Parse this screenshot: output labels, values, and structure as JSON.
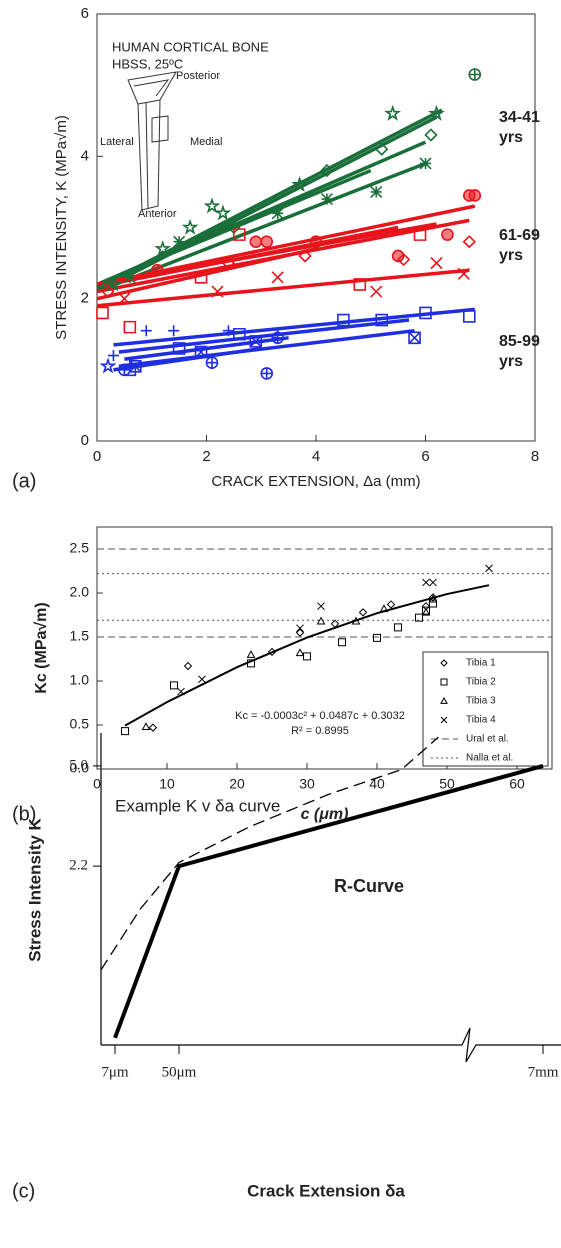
{
  "chart_data": [
    {
      "type": "scatter",
      "panel": "(a)",
      "xlabel": "CRACK EXTENSION, Δa (mm)",
      "ylabel": "STRESS INTENSITY, K (MPa√m)",
      "xlim": [
        0,
        8
      ],
      "xticks": [
        0,
        2,
        4,
        6,
        8
      ],
      "ylim": [
        0,
        6
      ],
      "yticks": [
        0,
        2,
        4,
        6
      ],
      "inset": {
        "title": [
          "HUMAN CORTICAL BONE",
          "HBSS, 25ºC"
        ],
        "labels": [
          "Posterior",
          "Lateral",
          "Medial",
          "Anterior"
        ]
      },
      "group_labels": [
        [
          "34-41",
          "yrs"
        ],
        [
          "61-69",
          "yrs"
        ],
        [
          "85-99",
          "yrs"
        ]
      ],
      "series": [
        {
          "color": "#1a6e3a",
          "marker": "star",
          "x": [
            0.3,
            1.2,
            1.7,
            2.1,
            2.3,
            3.7,
            5.4,
            6.2
          ],
          "values": [
            2.2,
            2.7,
            3.0,
            3.3,
            3.2,
            3.6,
            4.6,
            4.6
          ]
        },
        {
          "color": "#1a6e3a",
          "marker": "asterisk",
          "x": [
            0.6,
            1.5,
            3.3,
            4.2,
            5.1,
            6.0
          ],
          "values": [
            2.3,
            2.8,
            3.2,
            3.4,
            3.5,
            3.9
          ]
        },
        {
          "color": "#1a6e3a",
          "marker": "diamond",
          "x": [
            0.2,
            2.5,
            4.2,
            5.2,
            6.1
          ],
          "values": [
            2.2,
            3.0,
            3.8,
            4.1,
            4.3
          ]
        },
        {
          "color": "#1a6e3a",
          "marker": "circle-plus",
          "x": [
            6.9
          ],
          "values": [
            5.15
          ]
        },
        {
          "color": "#e8141c",
          "marker": "circle-half",
          "x": [
            1.1,
            2.9,
            3.1,
            4.0,
            5.5,
            6.4,
            6.8,
            6.9
          ],
          "values": [
            2.4,
            2.8,
            2.8,
            2.8,
            2.6,
            2.9,
            3.45,
            3.45
          ]
        },
        {
          "color": "#e8141c",
          "marker": "square",
          "x": [
            0.1,
            0.6,
            1.9,
            2.6,
            4.8,
            5.9
          ],
          "values": [
            1.8,
            1.6,
            2.3,
            2.9,
            2.2,
            2.9
          ]
        },
        {
          "color": "#e8141c",
          "marker": "x",
          "x": [
            0.5,
            2.2,
            3.3,
            5.1,
            6.2,
            6.7
          ],
          "values": [
            2.0,
            2.1,
            2.3,
            2.1,
            2.5,
            2.35
          ]
        },
        {
          "color": "#e8141c",
          "marker": "diamond",
          "x": [
            0.2,
            2.4,
            3.8,
            5.6,
            6.8
          ],
          "values": [
            2.1,
            2.5,
            2.6,
            2.55,
            2.8
          ]
        },
        {
          "color": "#1f2ee0",
          "marker": "plus",
          "x": [
            0.3,
            0.9,
            1.4,
            2.4,
            3.3
          ],
          "values": [
            1.2,
            1.55,
            1.55,
            1.55,
            1.5
          ]
        },
        {
          "color": "#1f2ee0",
          "marker": "square",
          "x": [
            0.6,
            1.5,
            2.6,
            4.5,
            5.2,
            6.0,
            6.8
          ],
          "values": [
            1.0,
            1.3,
            1.5,
            1.7,
            1.7,
            1.8,
            1.75
          ]
        },
        {
          "color": "#1f2ee0",
          "marker": "circle-plus",
          "x": [
            0.5,
            2.1,
            3.3,
            3.1
          ],
          "values": [
            1.0,
            1.1,
            1.45,
            0.95
          ]
        },
        {
          "color": "#1f2ee0",
          "marker": "crossed-square",
          "x": [
            0.7,
            1.9,
            2.9,
            5.8
          ],
          "values": [
            1.05,
            1.25,
            1.4,
            1.45
          ]
        },
        {
          "color": "#1f2ee0",
          "marker": "star",
          "x": [
            0.2
          ],
          "values": [
            1.05
          ]
        }
      ],
      "fits": [
        {
          "color": "#1a6e3a",
          "x": [
            0,
            6.3
          ],
          "values": [
            2.15,
            4.65
          ]
        },
        {
          "color": "#1a6e3a",
          "x": [
            0,
            6.2
          ],
          "values": [
            2.1,
            4.55
          ]
        },
        {
          "color": "#1a6e3a",
          "x": [
            0,
            6
          ],
          "values": [
            2.2,
            4.2
          ]
        },
        {
          "color": "#1a6e3a",
          "x": [
            0,
            6
          ],
          "values": [
            2.1,
            3.9
          ]
        },
        {
          "color": "#1a6e3a",
          "x": [
            0,
            5
          ],
          "values": [
            2.2,
            3.8
          ]
        },
        {
          "color": "#e8141c",
          "x": [
            0,
            6.9
          ],
          "values": [
            2.2,
            3.3
          ]
        },
        {
          "color": "#e8141c",
          "x": [
            0,
            6.8
          ],
          "values": [
            2.1,
            3.1
          ]
        },
        {
          "color": "#e8141c",
          "x": [
            0,
            6.2
          ],
          "values": [
            2.2,
            3.05
          ]
        },
        {
          "color": "#e8141c",
          "x": [
            0.2,
            5.5
          ],
          "values": [
            2.2,
            3.0
          ]
        },
        {
          "color": "#e8141c",
          "x": [
            0,
            6.8
          ],
          "values": [
            1.9,
            2.4
          ]
        },
        {
          "color": "#e8141c",
          "x": [
            0,
            4
          ],
          "values": [
            2.0,
            2.7
          ]
        },
        {
          "color": "#1f2ee0",
          "x": [
            0.3,
            6.9
          ],
          "values": [
            1.35,
            1.85
          ]
        },
        {
          "color": "#1f2ee0",
          "x": [
            0.4,
            5.8
          ],
          "values": [
            1.05,
            1.55
          ]
        },
        {
          "color": "#1f2ee0",
          "x": [
            0.4,
            5.7
          ],
          "values": [
            1.25,
            1.7
          ]
        },
        {
          "color": "#1f2ee0",
          "x": [
            0.5,
            3.5
          ],
          "values": [
            1.15,
            1.45
          ]
        },
        {
          "color": "#1f2ee0",
          "x": [
            0.3,
            3
          ],
          "values": [
            1.0,
            1.3
          ]
        }
      ]
    },
    {
      "type": "scatter",
      "panel": "(b)",
      "xlabel": "c (μm)",
      "ylabel": "Kc (MPa√m)",
      "xlim": [
        0,
        65
      ],
      "xticks": [
        0,
        10,
        20,
        30,
        40,
        50,
        60
      ],
      "ylim": [
        0,
        2.75
      ],
      "yticks": [
        {
          "value": 0,
          "label": "0.0"
        },
        {
          "value": 0.5,
          "label": "0.5"
        },
        {
          "value": 1,
          "label": "1.0"
        },
        {
          "value": 1.5,
          "label": "1.5"
        },
        {
          "value": 2,
          "label": "2.0"
        },
        {
          "value": 2.5,
          "label": "2.5"
        }
      ],
      "legend": "lower right",
      "series": [
        {
          "name": "Tibia 1",
          "color": "#000000",
          "marker": "diamond",
          "x": [
            8,
            13,
            25,
            29,
            34,
            38,
            42,
            47,
            48
          ],
          "values": [
            0.47,
            1.17,
            1.33,
            1.55,
            1.65,
            1.78,
            1.87,
            1.85,
            1.95
          ]
        },
        {
          "name": "Tibia 2",
          "color": "#000000",
          "marker": "square",
          "x": [
            4,
            11,
            22,
            30,
            35,
            40,
            43,
            46,
            47,
            48
          ],
          "values": [
            0.43,
            0.95,
            1.2,
            1.28,
            1.44,
            1.49,
            1.61,
            1.72,
            1.8,
            1.88
          ]
        },
        {
          "name": "Tibia 3",
          "color": "#000000",
          "marker": "triangle",
          "x": [
            7,
            22,
            29,
            32,
            37,
            41,
            47,
            48
          ],
          "values": [
            0.48,
            1.3,
            1.32,
            1.68,
            1.68,
            1.82,
            1.78,
            1.93
          ]
        },
        {
          "name": "Tibia 4",
          "color": "#000000",
          "marker": "x",
          "x": [
            12,
            15,
            29,
            32,
            47,
            48,
            56
          ],
          "values": [
            0.88,
            1.02,
            1.6,
            1.85,
            2.12,
            2.12,
            2.28
          ]
        }
      ],
      "reference_lines": [
        {
          "name": "Ural et al.",
          "style": "dashed",
          "values": [
            1.5,
            2.5
          ]
        },
        {
          "name": "Nalla et al.",
          "style": "dotted",
          "values": [
            1.69,
            2.22
          ]
        }
      ],
      "trendline": {
        "x": [
          4,
          10,
          20,
          30,
          40,
          50,
          56
        ],
        "values": [
          0.493,
          0.76,
          1.157,
          1.494,
          1.771,
          1.988,
          2.089
        ]
      },
      "equation": "Kc = -0.0003c² + 0.0487c + 0.3032",
      "r_squared": "R² = 0.8995"
    },
    {
      "type": "line",
      "panel": "(c)",
      "xlabel": "Crack Extension δa",
      "ylabel": "Stress Intensity K",
      "xlim": [
        -2.4,
        7344
      ],
      "xticks": [
        {
          "value": 7,
          "label": "7μm"
        },
        {
          "value": 50,
          "label": "50μm"
        },
        {
          "value": 7000,
          "label": "7mm"
        }
      ],
      "ylim": [
        -2.8,
        5.92
      ],
      "yticks": [
        2.2,
        {
          "value": 5,
          "label": "5.0"
        }
      ],
      "broken_axis": true,
      "series": [
        {
          "name": "Example K v δa curve",
          "color": "#000000",
          "style": "dashed",
          "x": [
            -2.4,
            24,
            50,
            1400,
            2900,
            4300,
            5000
          ],
          "values": [
            -0.7,
            1.0,
            2.3,
            3.3,
            4.2,
            4.9,
            5.8
          ]
        },
        {
          "name": "R-Curve",
          "color": "#000000",
          "style": "solid",
          "x": [
            7,
            50,
            7000
          ],
          "values": [
            -2.6,
            2.2,
            5.0
          ]
        }
      ]
    }
  ]
}
